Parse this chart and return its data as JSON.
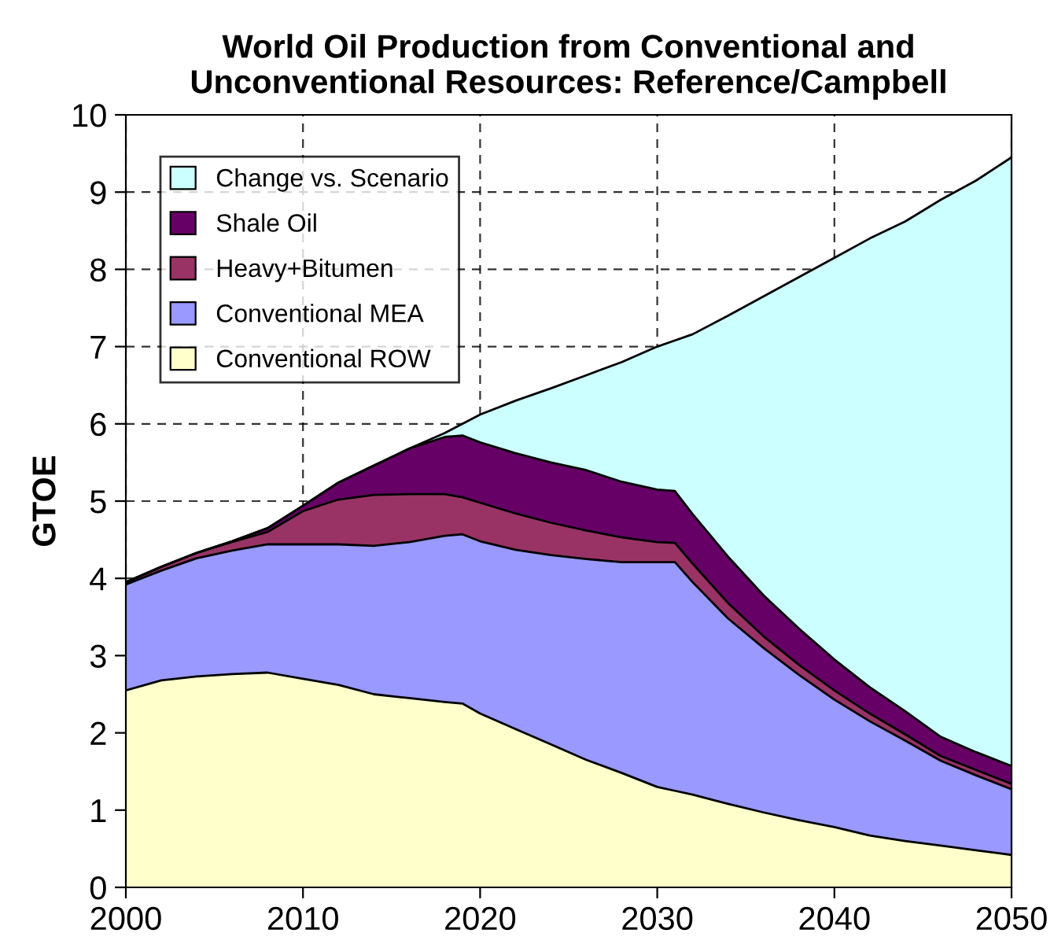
{
  "chart_data": {
    "type": "area",
    "stacked": true,
    "title": "World Oil Production from Conventional and\nUnconventional Resources: Reference/Campbell",
    "ylabel": "GTOE",
    "x": [
      2000,
      2002,
      2004,
      2006,
      2008,
      2010,
      2012,
      2014,
      2016,
      2018,
      2019,
      2020,
      2022,
      2024,
      2026,
      2028,
      2030,
      2031,
      2032,
      2034,
      2036,
      2038,
      2040,
      2042,
      2044,
      2046,
      2048,
      2050
    ],
    "series": [
      {
        "name": "Conventional ROW",
        "color": "#ffffcc",
        "values": [
          2.55,
          2.68,
          2.73,
          2.76,
          2.78,
          2.7,
          2.62,
          2.5,
          2.45,
          2.4,
          2.38,
          2.25,
          2.05,
          1.85,
          1.65,
          1.48,
          1.3,
          1.25,
          1.2,
          1.08,
          0.97,
          0.87,
          0.78,
          0.67,
          0.6,
          0.54,
          0.48,
          0.42
        ]
      },
      {
        "name": "Conventional MEA",
        "color": "#9999ff",
        "values": [
          1.37,
          1.42,
          1.53,
          1.6,
          1.66,
          1.74,
          1.82,
          1.92,
          2.02,
          2.15,
          2.19,
          2.23,
          2.32,
          2.45,
          2.6,
          2.73,
          2.91,
          2.96,
          2.75,
          2.4,
          2.13,
          1.88,
          1.65,
          1.48,
          1.3,
          1.1,
          0.97,
          0.85
        ]
      },
      {
        "name": "Heavy+Bitumen",
        "color": "#993366",
        "values": [
          0.03,
          0.05,
          0.07,
          0.11,
          0.16,
          0.43,
          0.58,
          0.66,
          0.62,
          0.54,
          0.48,
          0.5,
          0.47,
          0.42,
          0.37,
          0.32,
          0.26,
          0.25,
          0.24,
          0.2,
          0.15,
          0.13,
          0.12,
          0.1,
          0.08,
          0.06,
          0.07,
          0.07
        ]
      },
      {
        "name": "Shale Oil",
        "color": "#660066",
        "values": [
          0,
          0,
          0,
          0.01,
          0.05,
          0.07,
          0.22,
          0.38,
          0.59,
          0.74,
          0.8,
          0.78,
          0.78,
          0.78,
          0.78,
          0.72,
          0.68,
          0.67,
          0.64,
          0.6,
          0.53,
          0.47,
          0.4,
          0.34,
          0.3,
          0.25,
          0.23,
          0.23
        ]
      },
      {
        "name": "Change vs. Scenario",
        "color": "#ccffff",
        "values": [
          0,
          0,
          0,
          0,
          0,
          0,
          0,
          0,
          0,
          0.05,
          0.15,
          0.36,
          0.68,
          0.96,
          1.23,
          1.55,
          1.85,
          1.95,
          2.33,
          3.12,
          3.87,
          4.55,
          5.2,
          5.81,
          6.34,
          6.95,
          7.4,
          7.88
        ]
      }
    ],
    "xlim": [
      2000,
      2050
    ],
    "xticks": [
      2000,
      2010,
      2020,
      2030,
      2040,
      2050
    ],
    "ylim": [
      0,
      10
    ],
    "yticks": [
      0,
      1,
      2,
      3,
      4,
      5,
      6,
      7,
      8,
      9,
      10
    ],
    "grid": true,
    "legend": "top left"
  }
}
